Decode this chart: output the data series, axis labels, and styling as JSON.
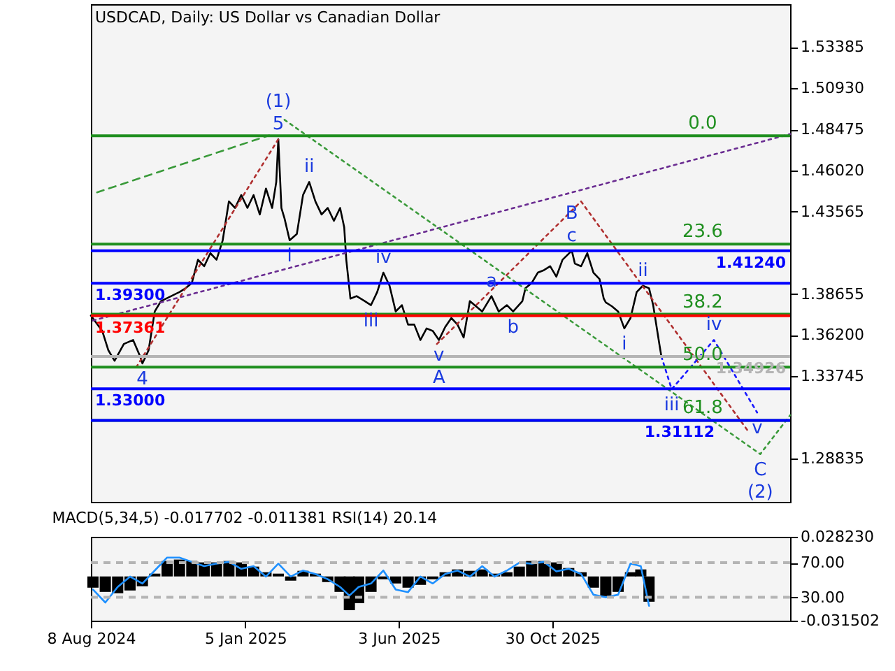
{
  "chart_data": [
    {
      "type": "line",
      "title": "USDCAD, Daily:  US Dollar vs Canadian Dollar",
      "xlim": [
        "2024-08-08",
        "2026-06-18"
      ],
      "ylim": [
        1.2625,
        1.5595
      ],
      "yticks": [
        1.53385,
        {
          "value": 1.5093,
          "label": "1.50930"
        },
        1.48475,
        {
          "value": 1.4602,
          "label": "1.46020"
        },
        1.43565,
        1.38655,
        {
          "value": 1.362,
          "label": "1.36200"
        },
        1.33745,
        1.28835
      ],
      "tick_labels": "y",
      "grid": false,
      "series": [
        {
          "color": "#000000",
          "x": [
            "2024-08-08",
            "2024-08-19",
            "2024-08-25",
            "2024-08-31",
            "2024-09-09",
            "2024-09-18",
            "2024-09-25",
            "2024-09-27",
            "2024-10-03",
            "2024-10-09",
            "2024-10-15",
            "2024-10-25",
            "2024-11-02",
            "2024-11-08",
            "2024-11-14",
            "2024-11-20",
            "2024-11-26",
            "2024-12-02",
            "2024-12-08",
            "2024-12-14",
            "2024-12-20",
            "2024-12-26",
            "2025-01-01",
            "2025-01-07",
            "2025-01-13",
            "2025-01-19",
            "2025-01-25",
            "2025-01-31",
            "2025-02-04",
            "2025-02-06",
            "2025-02-09",
            "2025-02-12",
            "2025-02-17",
            "2025-02-24",
            "2025-03-02",
            "2025-03-08",
            "2025-03-14",
            "2025-03-20",
            "2025-03-26",
            "2025-04-01",
            "2025-04-07",
            "2025-04-11",
            "2025-04-13",
            "2025-04-17",
            "2025-04-23",
            "2025-05-01",
            "2025-05-07",
            "2025-05-13",
            "2025-05-19",
            "2025-05-25",
            "2025-05-31",
            "2025-06-06",
            "2025-06-12",
            "2025-06-18",
            "2025-06-24",
            "2025-06-30",
            "2025-07-06",
            "2025-07-12",
            "2025-07-18",
            "2025-07-24",
            "2025-07-30",
            "2025-08-05",
            "2025-08-11",
            "2025-08-17",
            "2025-08-23",
            "2025-09-01",
            "2025-09-08",
            "2025-09-16",
            "2025-09-22",
            "2025-10-01",
            "2025-10-04",
            "2025-10-10",
            "2025-10-16",
            "2025-10-22",
            "2025-10-28",
            "2025-11-03",
            "2025-11-09",
            "2025-11-18",
            "2025-11-21",
            "2025-11-27",
            "2025-12-03",
            "2025-12-09",
            "2025-12-15",
            "2025-12-19",
            "2025-12-21",
            "2025-12-27",
            "2026-01-02",
            "2026-01-08",
            "2026-01-14",
            "2026-01-20",
            "2026-01-26",
            "2026-02-01",
            "2026-02-05",
            "2026-02-07",
            "2026-02-11",
            "2026-02-13"
          ],
          "values": [
            1.3737,
            1.3645,
            1.3529,
            1.3467,
            1.3567,
            1.3591,
            1.349,
            1.3451,
            1.3529,
            1.3761,
            1.3823,
            1.3853,
            1.3877,
            1.39,
            1.3931,
            1.407,
            1.4031,
            1.4109,
            1.407,
            1.4186,
            1.4418,
            1.4379,
            1.4456,
            1.4379,
            1.4456,
            1.434,
            1.4495,
            1.4379,
            1.4534,
            1.4789,
            1.4379,
            1.4317,
            1.4186,
            1.4224,
            1.4456,
            1.4534,
            1.4418,
            1.434,
            1.4379,
            1.4302,
            1.4379,
            1.4263,
            1.407,
            1.3838,
            1.3853,
            1.3823,
            1.3799,
            1.3877,
            1.3993,
            1.3915,
            1.3761,
            1.3799,
            1.3683,
            1.3683,
            1.3591,
            1.366,
            1.3645,
            1.3591,
            1.3668,
            1.3722,
            1.3683,
            1.3606,
            1.3823,
            1.3792,
            1.3761,
            1.3853,
            1.3761,
            1.3799,
            1.3761,
            1.3823,
            1.39,
            1.3931,
            1.3993,
            1.4008,
            1.4031,
            1.3969,
            1.407,
            1.4124,
            1.4047,
            1.4031,
            1.4109,
            1.3993,
            1.3954,
            1.3838,
            1.3815,
            1.3792,
            1.3761,
            1.366,
            1.3722,
            1.3877,
            1.3915,
            1.39,
            1.3799,
            1.3722,
            1.3567,
            1.34926
          ]
        },
        {
          "color": "#6a2c91",
          "line_style": "dotted",
          "x": [
            "2024-08-10",
            "2026-06-18"
          ],
          "values": [
            1.3707,
            1.482
          ]
        },
        {
          "color": "#3a9a3a",
          "line_style": "dashed",
          "x": [
            "2024-08-14",
            "2025-01-28"
          ],
          "values": [
            1.4472,
            1.4812
          ]
        },
        {
          "color": "#3a9a3a",
          "line_style": "dotted",
          "x": [
            "2025-02-12",
            "2026-05-20",
            "2026-06-18"
          ],
          "values": [
            1.4905,
            1.291,
            1.3142
          ]
        },
        {
          "color": "#b03030",
          "line_style": "dotted",
          "x": [
            "2024-09-21",
            "2025-02-06"
          ],
          "values": [
            1.3428,
            1.4789
          ]
        },
        {
          "color": "#b03030",
          "line_style": "dotted",
          "x": [
            "2025-07-10",
            "2025-11-27",
            "2026-05-08"
          ],
          "values": [
            1.3567,
            1.4418,
            1.3049
          ]
        },
        {
          "color": "#1a1aff",
          "line_style": "dotted",
          "x": [
            "2026-02-13",
            "2026-02-23",
            "2026-04-05",
            "2026-05-17"
          ],
          "values": [
            1.34926,
            1.3297,
            1.3591,
            1.3158
          ]
        }
      ],
      "ref_lines": [
        {
          "axis": "y",
          "value": 1.481,
          "color": "#1f8f1f"
        },
        {
          "axis": "y",
          "value": 1.4163,
          "color": "#1f8f1f"
        },
        {
          "axis": "y",
          "value": 1.3745,
          "color": "#1f8f1f"
        },
        {
          "axis": "y",
          "value": 1.3429,
          "color": "#1f8f1f"
        },
        {
          "axis": "y",
          "value": 1.3111,
          "color": "#1f8f1f"
        },
        {
          "axis": "y",
          "value": 1.4124,
          "label": "1.41240",
          "color": "#0000ff"
        },
        {
          "axis": "y",
          "value": 1.393,
          "label": "1.39300",
          "color": "#0000ff"
        },
        {
          "axis": "y",
          "value": 1.37361,
          "label": "1.37361",
          "color": "#ff0000"
        },
        {
          "axis": "y",
          "value": 1.34926,
          "label": "1.34926",
          "color": "#b4b4b4"
        },
        {
          "axis": "y",
          "value": 1.33,
          "label": "1.33000",
          "color": "#0000ff"
        },
        {
          "axis": "y",
          "value": 1.31112,
          "label": "1.31112",
          "color": "#0000ff"
        }
      ],
      "annotations": [
        {
          "text": "5",
          "x": "2025-02-06",
          "y": 1.4789
        },
        {
          "text": "(1)",
          "x": "2025-02-06",
          "y": 1.4789
        },
        {
          "text": "4",
          "x": "2024-09-27",
          "y": 1.3451
        },
        {
          "text": "v",
          "x": "2025-07-12",
          "y": 1.3591
        },
        {
          "text": "A",
          "x": "2025-07-12",
          "y": 1.3591
        },
        {
          "text": "c",
          "x": "2025-11-18",
          "y": 1.4124
        },
        {
          "text": "B",
          "x": "2025-11-18",
          "y": 1.4124
        },
        {
          "text": "C",
          "x": "2026-05-20",
          "y": 1.291
        },
        {
          "text": "(2)",
          "x": "2026-05-20",
          "y": 1.291
        },
        {
          "text": "i",
          "x": "2025-02-17",
          "y": 1.4186
        },
        {
          "text": "ii",
          "x": "2025-03-08",
          "y": 1.4534
        },
        {
          "text": "iii",
          "x": "2025-05-07",
          "y": 1.3799
        },
        {
          "text": "iv",
          "x": "2025-05-19",
          "y": 1.3993
        },
        {
          "text": "a",
          "x": "2025-09-01",
          "y": 1.3853
        },
        {
          "text": "b",
          "x": "2025-09-22",
          "y": 1.3761
        },
        {
          "text": "i",
          "x": "2026-01-08",
          "y": 1.366
        },
        {
          "text": "ii",
          "x": "2026-01-26",
          "y": 1.3915
        },
        {
          "text": "iii",
          "x": "2026-02-23",
          "y": 1.3297
        },
        {
          "text": "iv",
          "x": "2026-04-05",
          "y": 1.3591
        },
        {
          "text": "v",
          "x": "2026-05-17",
          "y": 1.3158
        },
        {
          "text": "0.0",
          "x": "2026-03-25",
          "y": 1.481
        },
        {
          "text": "23.6",
          "x": "2026-03-25",
          "y": 1.4163
        },
        {
          "text": "38.2",
          "x": "2026-03-25",
          "y": 1.3745
        },
        {
          "text": "50.0",
          "x": "2026-03-25",
          "y": 1.3429
        },
        {
          "text": "61.8",
          "x": "2026-03-25",
          "y": 1.3111
        }
      ]
    },
    {
      "type": "bar",
      "title": "MACD(5,34,5) -0.017702 -0.011381 RSI(14) 20.14",
      "xlim": [
        "2024-08-08",
        "2026-06-18"
      ],
      "xticks": [
        {
          "value": "2024-08-08",
          "label": "8 Aug 2024"
        },
        {
          "value": "2025-01-05",
          "label": "5 Jan 2025"
        },
        {
          "value": "2025-06-03",
          "label": "3 Jun 2025"
        },
        {
          "value": "2025-10-30",
          "label": "30 Oct 2025"
        }
      ],
      "ylim": [
        -0.031502,
        0.02823
      ],
      "yticks": [
        {
          "value": 0.02823,
          "label": "0.028230"
        },
        -0.031502
      ],
      "y2lim": [
        3,
        100
      ],
      "y2ticks": [
        {
          "value": 70,
          "label": "70.00"
        },
        {
          "value": 30,
          "label": "30.00"
        }
      ],
      "grid": false,
      "x": [
        "2024-08-10",
        "2024-08-22",
        "2024-09-03",
        "2024-09-15",
        "2024-09-27",
        "2024-10-09",
        "2024-10-21",
        "2024-11-02",
        "2024-11-14",
        "2024-11-26",
        "2024-12-08",
        "2024-12-20",
        "2025-01-01",
        "2025-01-13",
        "2025-01-25",
        "2025-02-06",
        "2025-02-18",
        "2025-03-02",
        "2025-03-14",
        "2025-03-26",
        "2025-04-07",
        "2025-04-16",
        "2025-04-25",
        "2025-05-07",
        "2025-05-19",
        "2025-05-31",
        "2025-06-12",
        "2025-06-24",
        "2025-07-06",
        "2025-07-18",
        "2025-07-30",
        "2025-08-11",
        "2025-08-23",
        "2025-09-04",
        "2025-09-16",
        "2025-09-28",
        "2025-10-10",
        "2025-10-22",
        "2025-11-03",
        "2025-11-15",
        "2025-11-27",
        "2025-12-09",
        "2025-12-21",
        "2026-01-02",
        "2026-01-14",
        "2026-01-24",
        "2026-02-01"
      ],
      "series": [
        {
          "color": "#000000",
          "values": [
            -0.008,
            -0.011,
            -0.012,
            -0.01,
            -0.007,
            0.002,
            0.011,
            0.012,
            0.011,
            0.01,
            0.01,
            0.011,
            0.01,
            0.007,
            0.003,
            0.002,
            -0.003,
            0.004,
            0.002,
            -0.004,
            -0.011,
            -0.024,
            -0.019,
            -0.011,
            -0.002,
            -0.005,
            -0.008,
            -0.006,
            -0.002,
            0.003,
            0.005,
            0.004,
            0.005,
            0.002,
            0.003,
            0.007,
            0.011,
            0.011,
            0.01,
            0.006,
            0.003,
            -0.008,
            -0.014,
            -0.011,
            0.003,
            0.005,
            -0.018
          ]
        },
        {
          "type": "line",
          "axis": "y2",
          "color": "#1e90ff",
          "values": [
            39,
            24,
            42,
            54,
            46,
            61,
            76,
            76,
            71,
            66,
            69,
            71,
            63,
            66,
            54,
            69,
            54,
            61,
            57,
            51,
            42,
            32,
            42,
            46,
            61,
            39,
            36,
            54,
            46,
            57,
            61,
            54,
            66,
            54,
            61,
            70,
            69,
            71,
            60,
            63,
            57,
            33,
            30,
            33,
            69,
            66,
            20.14
          ]
        }
      ],
      "ref_lines": [
        {
          "axis": "y2",
          "value": 70,
          "color": "#b4b4b4",
          "line_style": "dashed"
        },
        {
          "axis": "y2",
          "value": 30,
          "color": "#b4b4b4",
          "line_style": "dashed"
        }
      ]
    }
  ]
}
